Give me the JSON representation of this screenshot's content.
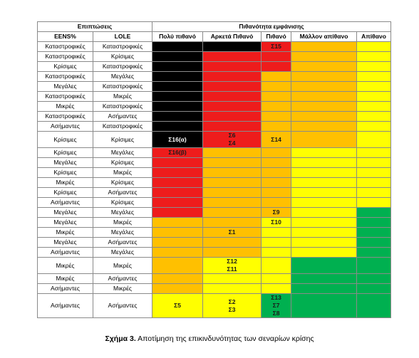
{
  "header": {
    "groups": [
      "Επιπτώσεις",
      "Πιθανότητα εμφάνισης"
    ],
    "columns": [
      "EENS%",
      "LOLE",
      "Πολύ πιθανό",
      "Αρκετά Πιθανό",
      "Πιθανό",
      "Μάλλον απίθανο",
      "Απίθανο"
    ]
  },
  "rows": [
    {
      "eens": "Καταστροφικές",
      "lole": "Καταστροφικές",
      "cells": [
        {
          "color": "#000000"
        },
        {
          "color": "#000000"
        },
        {
          "color": "#ee1c1c",
          "lines": [
            "Σ15"
          ]
        },
        {
          "color": "#ffc000"
        },
        {
          "color": "#ffff00"
        }
      ]
    },
    {
      "eens": "Καταστροφικές",
      "lole": "Κρίσιμες",
      "cells": [
        {
          "color": "#000000"
        },
        {
          "color": "#ee1c1c"
        },
        {
          "color": "#ee1c1c"
        },
        {
          "color": "#ffc000"
        },
        {
          "color": "#ffff00"
        }
      ]
    },
    {
      "eens": "Κρίσιμες",
      "lole": "Καταστροφικές",
      "cells": [
        {
          "color": "#000000"
        },
        {
          "color": "#ee1c1c"
        },
        {
          "color": "#ee1c1c"
        },
        {
          "color": "#ffc000"
        },
        {
          "color": "#ffff00"
        }
      ]
    },
    {
      "eens": "Καταστροφικές",
      "lole": "Μεγάλες",
      "cells": [
        {
          "color": "#000000"
        },
        {
          "color": "#ee1c1c"
        },
        {
          "color": "#ffc000"
        },
        {
          "color": "#ffc000"
        },
        {
          "color": "#ffff00"
        }
      ]
    },
    {
      "eens": "Μεγάλες",
      "lole": "Καταστροφικές",
      "cells": [
        {
          "color": "#000000"
        },
        {
          "color": "#ee1c1c"
        },
        {
          "color": "#ffc000"
        },
        {
          "color": "#ffc000"
        },
        {
          "color": "#ffff00"
        }
      ]
    },
    {
      "eens": "Καταστροφικές",
      "lole": "Μικρές",
      "cells": [
        {
          "color": "#000000"
        },
        {
          "color": "#ee1c1c"
        },
        {
          "color": "#ffc000"
        },
        {
          "color": "#ffc000"
        },
        {
          "color": "#ffff00"
        }
      ]
    },
    {
      "eens": "Μικρές",
      "lole": "Καταστροφικές",
      "cells": [
        {
          "color": "#000000"
        },
        {
          "color": "#ee1c1c"
        },
        {
          "color": "#ffc000"
        },
        {
          "color": "#ffc000"
        },
        {
          "color": "#ffff00"
        }
      ]
    },
    {
      "eens": "Καταστροφικές",
      "lole": "Ασήμαντες",
      "cells": [
        {
          "color": "#000000"
        },
        {
          "color": "#ee1c1c"
        },
        {
          "color": "#ffc000"
        },
        {
          "color": "#ffc000"
        },
        {
          "color": "#ffff00"
        }
      ]
    },
    {
      "eens": "Ασήμαντες",
      "lole": "Καταστροφικές",
      "cells": [
        {
          "color": "#000000"
        },
        {
          "color": "#ee1c1c"
        },
        {
          "color": "#ffc000"
        },
        {
          "color": "#ffc000"
        },
        {
          "color": "#ffff00"
        }
      ]
    },
    {
      "eens": "Κρίσιμες",
      "lole": "Κρίσιμες",
      "cells": [
        {
          "color": "#000000",
          "lines": [
            "Σ16(α)"
          ]
        },
        {
          "color": "#ee1c1c",
          "lines": [
            "Σ6",
            "Σ4"
          ]
        },
        {
          "color": "#ffc000",
          "lines": [
            "Σ14"
          ]
        },
        {
          "color": "#ffc000"
        },
        {
          "color": "#ffff00"
        }
      ]
    },
    {
      "eens": "Κρίσιμες",
      "lole": "Μεγάλες",
      "cells": [
        {
          "color": "#ee1c1c",
          "lines": [
            "Σ16(β)"
          ]
        },
        {
          "color": "#ffc000"
        },
        {
          "color": "#ffc000"
        },
        {
          "color": "#ffff00"
        },
        {
          "color": "#ffff00"
        }
      ]
    },
    {
      "eens": "Μεγάλες",
      "lole": "Κρίσιμες",
      "cells": [
        {
          "color": "#ee1c1c"
        },
        {
          "color": "#ffc000"
        },
        {
          "color": "#ffc000"
        },
        {
          "color": "#ffff00"
        },
        {
          "color": "#ffff00"
        }
      ]
    },
    {
      "eens": "Κρίσιμες",
      "lole": "Μικρές",
      "cells": [
        {
          "color": "#ee1c1c"
        },
        {
          "color": "#ffc000"
        },
        {
          "color": "#ffc000"
        },
        {
          "color": "#ffff00"
        },
        {
          "color": "#ffff00"
        }
      ]
    },
    {
      "eens": "Μικρές",
      "lole": "Κρίσιμες",
      "cells": [
        {
          "color": "#ee1c1c"
        },
        {
          "color": "#ffc000"
        },
        {
          "color": "#ffc000"
        },
        {
          "color": "#ffff00"
        },
        {
          "color": "#ffff00"
        }
      ]
    },
    {
      "eens": "Κρίσιμες",
      "lole": "Ασήμαντες",
      "cells": [
        {
          "color": "#ee1c1c"
        },
        {
          "color": "#ffc000"
        },
        {
          "color": "#ffc000"
        },
        {
          "color": "#ffff00"
        },
        {
          "color": "#ffff00"
        }
      ]
    },
    {
      "eens": "Ασήμαντες",
      "lole": "Κρίσιμες",
      "cells": [
        {
          "color": "#ee1c1c"
        },
        {
          "color": "#ffc000"
        },
        {
          "color": "#ffc000"
        },
        {
          "color": "#ffff00"
        },
        {
          "color": "#ffff00"
        }
      ]
    },
    {
      "eens": "Μεγάλες",
      "lole": "Μεγάλες",
      "cells": [
        {
          "color": "#ee1c1c"
        },
        {
          "color": "#ffc000"
        },
        {
          "color": "#ffc000",
          "lines": [
            "Σ9"
          ]
        },
        {
          "color": "#ffff00"
        },
        {
          "color": "#00b050"
        }
      ]
    },
    {
      "eens": "Μεγάλες",
      "lole": "Μικρές",
      "cells": [
        {
          "color": "#ffc000"
        },
        {
          "color": "#ffc000"
        },
        {
          "color": "#ffff00",
          "lines": [
            "Σ10"
          ]
        },
        {
          "color": "#ffff00"
        },
        {
          "color": "#00b050"
        }
      ]
    },
    {
      "eens": "Μικρές",
      "lole": "Μεγάλες",
      "cells": [
        {
          "color": "#ffc000"
        },
        {
          "color": "#ffc000",
          "lines": [
            "Σ1"
          ]
        },
        {
          "color": "#ffff00"
        },
        {
          "color": "#ffff00"
        },
        {
          "color": "#00b050"
        }
      ]
    },
    {
      "eens": "Μεγάλες",
      "lole": "Ασήμαντες",
      "cells": [
        {
          "color": "#ffc000"
        },
        {
          "color": "#ffc000"
        },
        {
          "color": "#ffff00"
        },
        {
          "color": "#ffff00"
        },
        {
          "color": "#00b050"
        }
      ]
    },
    {
      "eens": "Ασήμαντες",
      "lole": "Μεγάλες",
      "cells": [
        {
          "color": "#ffc000"
        },
        {
          "color": "#ffc000"
        },
        {
          "color": "#ffff00"
        },
        {
          "color": "#ffff00"
        },
        {
          "color": "#00b050"
        }
      ]
    },
    {
      "eens": "Μικρές",
      "lole": "Μικρές",
      "cells": [
        {
          "color": "#ffc000"
        },
        {
          "color": "#ffff00",
          "lines": [
            "Σ12",
            "Σ11"
          ]
        },
        {
          "color": "#ffff00"
        },
        {
          "color": "#00b050"
        },
        {
          "color": "#00b050"
        }
      ]
    },
    {
      "eens": "Μικρές",
      "lole": "Ασήμαντες",
      "cells": [
        {
          "color": "#ffc000"
        },
        {
          "color": "#ffff00"
        },
        {
          "color": "#ffff00"
        },
        {
          "color": "#00b050"
        },
        {
          "color": "#00b050"
        }
      ]
    },
    {
      "eens": "Ασήμαντες",
      "lole": "Μικρές",
      "cells": [
        {
          "color": "#ffc000"
        },
        {
          "color": "#ffff00"
        },
        {
          "color": "#ffff00"
        },
        {
          "color": "#00b050"
        },
        {
          "color": "#00b050"
        }
      ]
    },
    {
      "eens": "Ασήμαντες",
      "lole": "Ασήμαντες",
      "cells": [
        {
          "color": "#ffff00",
          "lines": [
            "Σ5"
          ]
        },
        {
          "color": "#ffff00",
          "lines": [
            "Σ2",
            "Σ3"
          ]
        },
        {
          "color": "#00b050",
          "lines": [
            "Σ13",
            "Σ7",
            "Σ8"
          ]
        },
        {
          "color": "#00b050"
        },
        {
          "color": "#00b050"
        }
      ]
    }
  ],
  "caption": {
    "label": "Σχήμα 3.",
    "text": "Αποτίμηση της επικινδυνότητας των σεναρίων κρίσης"
  }
}
